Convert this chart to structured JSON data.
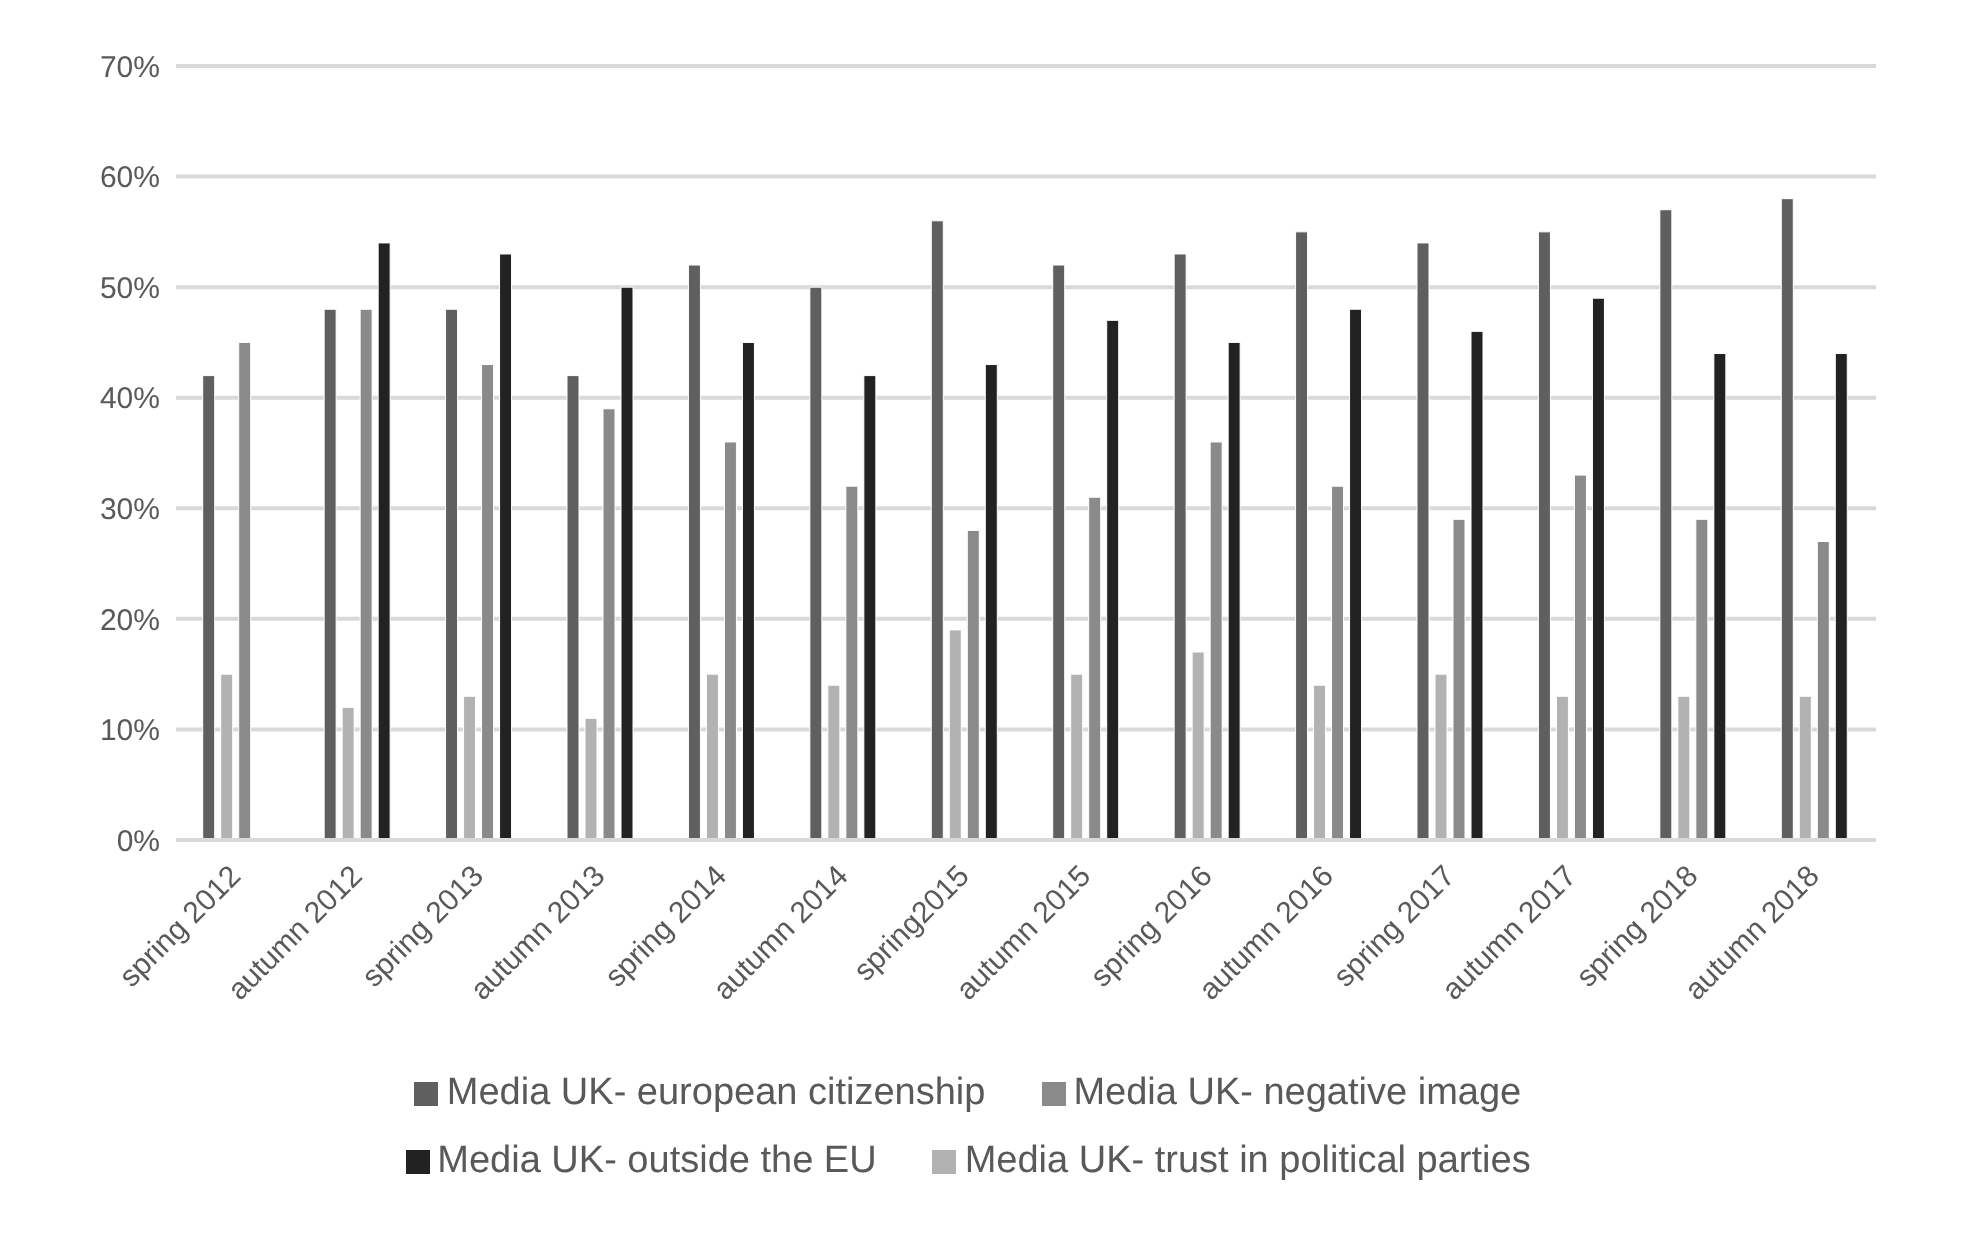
{
  "chart_data": {
    "type": "bar",
    "categories": [
      "spring 2012",
      "autumn 2012",
      "spring 2013",
      "autumn 2013",
      "spring 2014",
      "autumn 2014",
      "spring2015",
      "autumn 2015",
      "spring 2016",
      "autumn 2016",
      "spring 2017",
      "autumn 2017",
      "spring 2018",
      "autumn 2018"
    ],
    "series": [
      {
        "name": "Media UK- european citizenship",
        "color": "#5f5f5f",
        "values": [
          42,
          48,
          48,
          42,
          52,
          50,
          56,
          52,
          53,
          55,
          54,
          55,
          57,
          58
        ]
      },
      {
        "name": "Media UK- trust in political parties",
        "color": "#b2b2b2",
        "values": [
          15,
          12,
          13,
          11,
          15,
          14,
          19,
          15,
          17,
          14,
          15,
          13,
          13,
          13
        ]
      },
      {
        "name": "Media UK- negative image",
        "color": "#8a8a8a",
        "values": [
          45,
          48,
          43,
          39,
          36,
          32,
          28,
          31,
          36,
          32,
          29,
          33,
          29,
          27
        ]
      },
      {
        "name": "Media UK- outside the EU",
        "color": "#222222",
        "values": [
          null,
          54,
          53,
          50,
          45,
          42,
          43,
          47,
          45,
          48,
          46,
          49,
          44,
          44
        ]
      }
    ],
    "ylim": [
      0,
      70
    ],
    "yticks": [
      {
        "value": 0,
        "label": "0%"
      },
      {
        "value": 10,
        "label": "10%"
      },
      {
        "value": 20,
        "label": "20%"
      },
      {
        "value": 30,
        "label": "30%"
      },
      {
        "value": 40,
        "label": "40%"
      },
      {
        "value": 50,
        "label": "50%"
      },
      {
        "value": 60,
        "label": "60%"
      },
      {
        "value": 70,
        "label": "70%"
      }
    ],
    "grid": "y",
    "legend": "bottom"
  }
}
